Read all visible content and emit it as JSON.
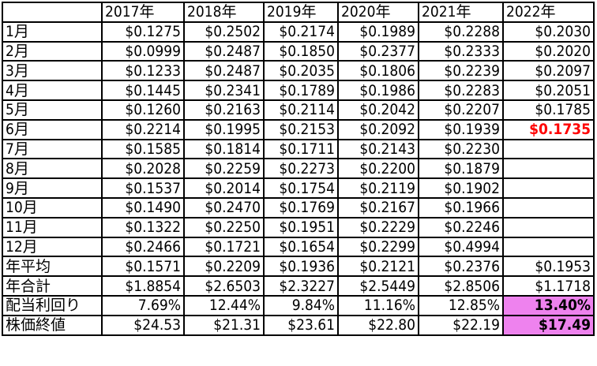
{
  "headers": [
    "",
    "2017年",
    "2018年",
    "2019年",
    "2020年",
    "2021年",
    "2022年"
  ],
  "rows": [
    {
      "label": "1月",
      "values": [
        "$0.1275",
        "$0.2502",
        "$0.2174",
        "$0.1989",
        "$0.2288",
        "$0.2030"
      ]
    },
    {
      "label": "2月",
      "values": [
        "$0.0999",
        "$0.2487",
        "$0.1850",
        "$0.2377",
        "$0.2333",
        "$0.2020"
      ]
    },
    {
      "label": "3月",
      "values": [
        "$0.1233",
        "$0.2487",
        "$0.2035",
        "$0.1806",
        "$0.2239",
        "$0.2097"
      ]
    },
    {
      "label": "4月",
      "values": [
        "$0.1445",
        "$0.2341",
        "$0.1789",
        "$0.1986",
        "$0.2283",
        "$0.2051"
      ]
    },
    {
      "label": "5月",
      "values": [
        "$0.1260",
        "$0.2163",
        "$0.2114",
        "$0.2042",
        "$0.2207",
        "$0.1785"
      ]
    },
    {
      "label": "6月",
      "values": [
        "$0.2214",
        "$0.1995",
        "$0.2153",
        "$0.2092",
        "$0.1939",
        "$0.1735"
      ]
    },
    {
      "label": "7月",
      "values": [
        "$0.1585",
        "$0.1814",
        "$0.1711",
        "$0.2143",
        "$0.2230",
        ""
      ]
    },
    {
      "label": "8月",
      "values": [
        "$0.2028",
        "$0.2259",
        "$0.2273",
        "$0.2200",
        "$0.1879",
        ""
      ]
    },
    {
      "label": "9月",
      "values": [
        "$0.1537",
        "$0.2014",
        "$0.1754",
        "$0.2119",
        "$0.1902",
        ""
      ]
    },
    {
      "label": "10月",
      "values": [
        "$0.1490",
        "$0.2470",
        "$0.1769",
        "$0.2167",
        "$0.1966",
        ""
      ]
    },
    {
      "label": "11月",
      "values": [
        "$0.1322",
        "$0.2250",
        "$0.1951",
        "$0.2229",
        "$0.2246",
        ""
      ]
    },
    {
      "label": "12月",
      "values": [
        "$0.2466",
        "$0.1721",
        "$0.1654",
        "$0.2299",
        "$0.4994",
        ""
      ]
    },
    {
      "label": "年平均",
      "values": [
        "$0.1571",
        "$0.2209",
        "$0.1936",
        "$0.2121",
        "$0.2376",
        "$0.1953"
      ]
    },
    {
      "label": "年合計",
      "values": [
        "$1.8854",
        "$2.6503",
        "$2.3227",
        "$2.5449",
        "$2.8506",
        "$1.1718"
      ]
    },
    {
      "label": "配当利回り",
      "values": [
        "7.69%",
        "12.44%",
        "9.84%",
        "11.16%",
        "12.85%",
        "13.40%"
      ]
    },
    {
      "label": "株価終値",
      "values": [
        "$24.53",
        "$21.31",
        "$23.61",
        "$22.80",
        "$22.19",
        "$17.49"
      ]
    }
  ],
  "highlights": {
    "red_text": "#ff0000",
    "pink_fill": "#ee82ee"
  }
}
